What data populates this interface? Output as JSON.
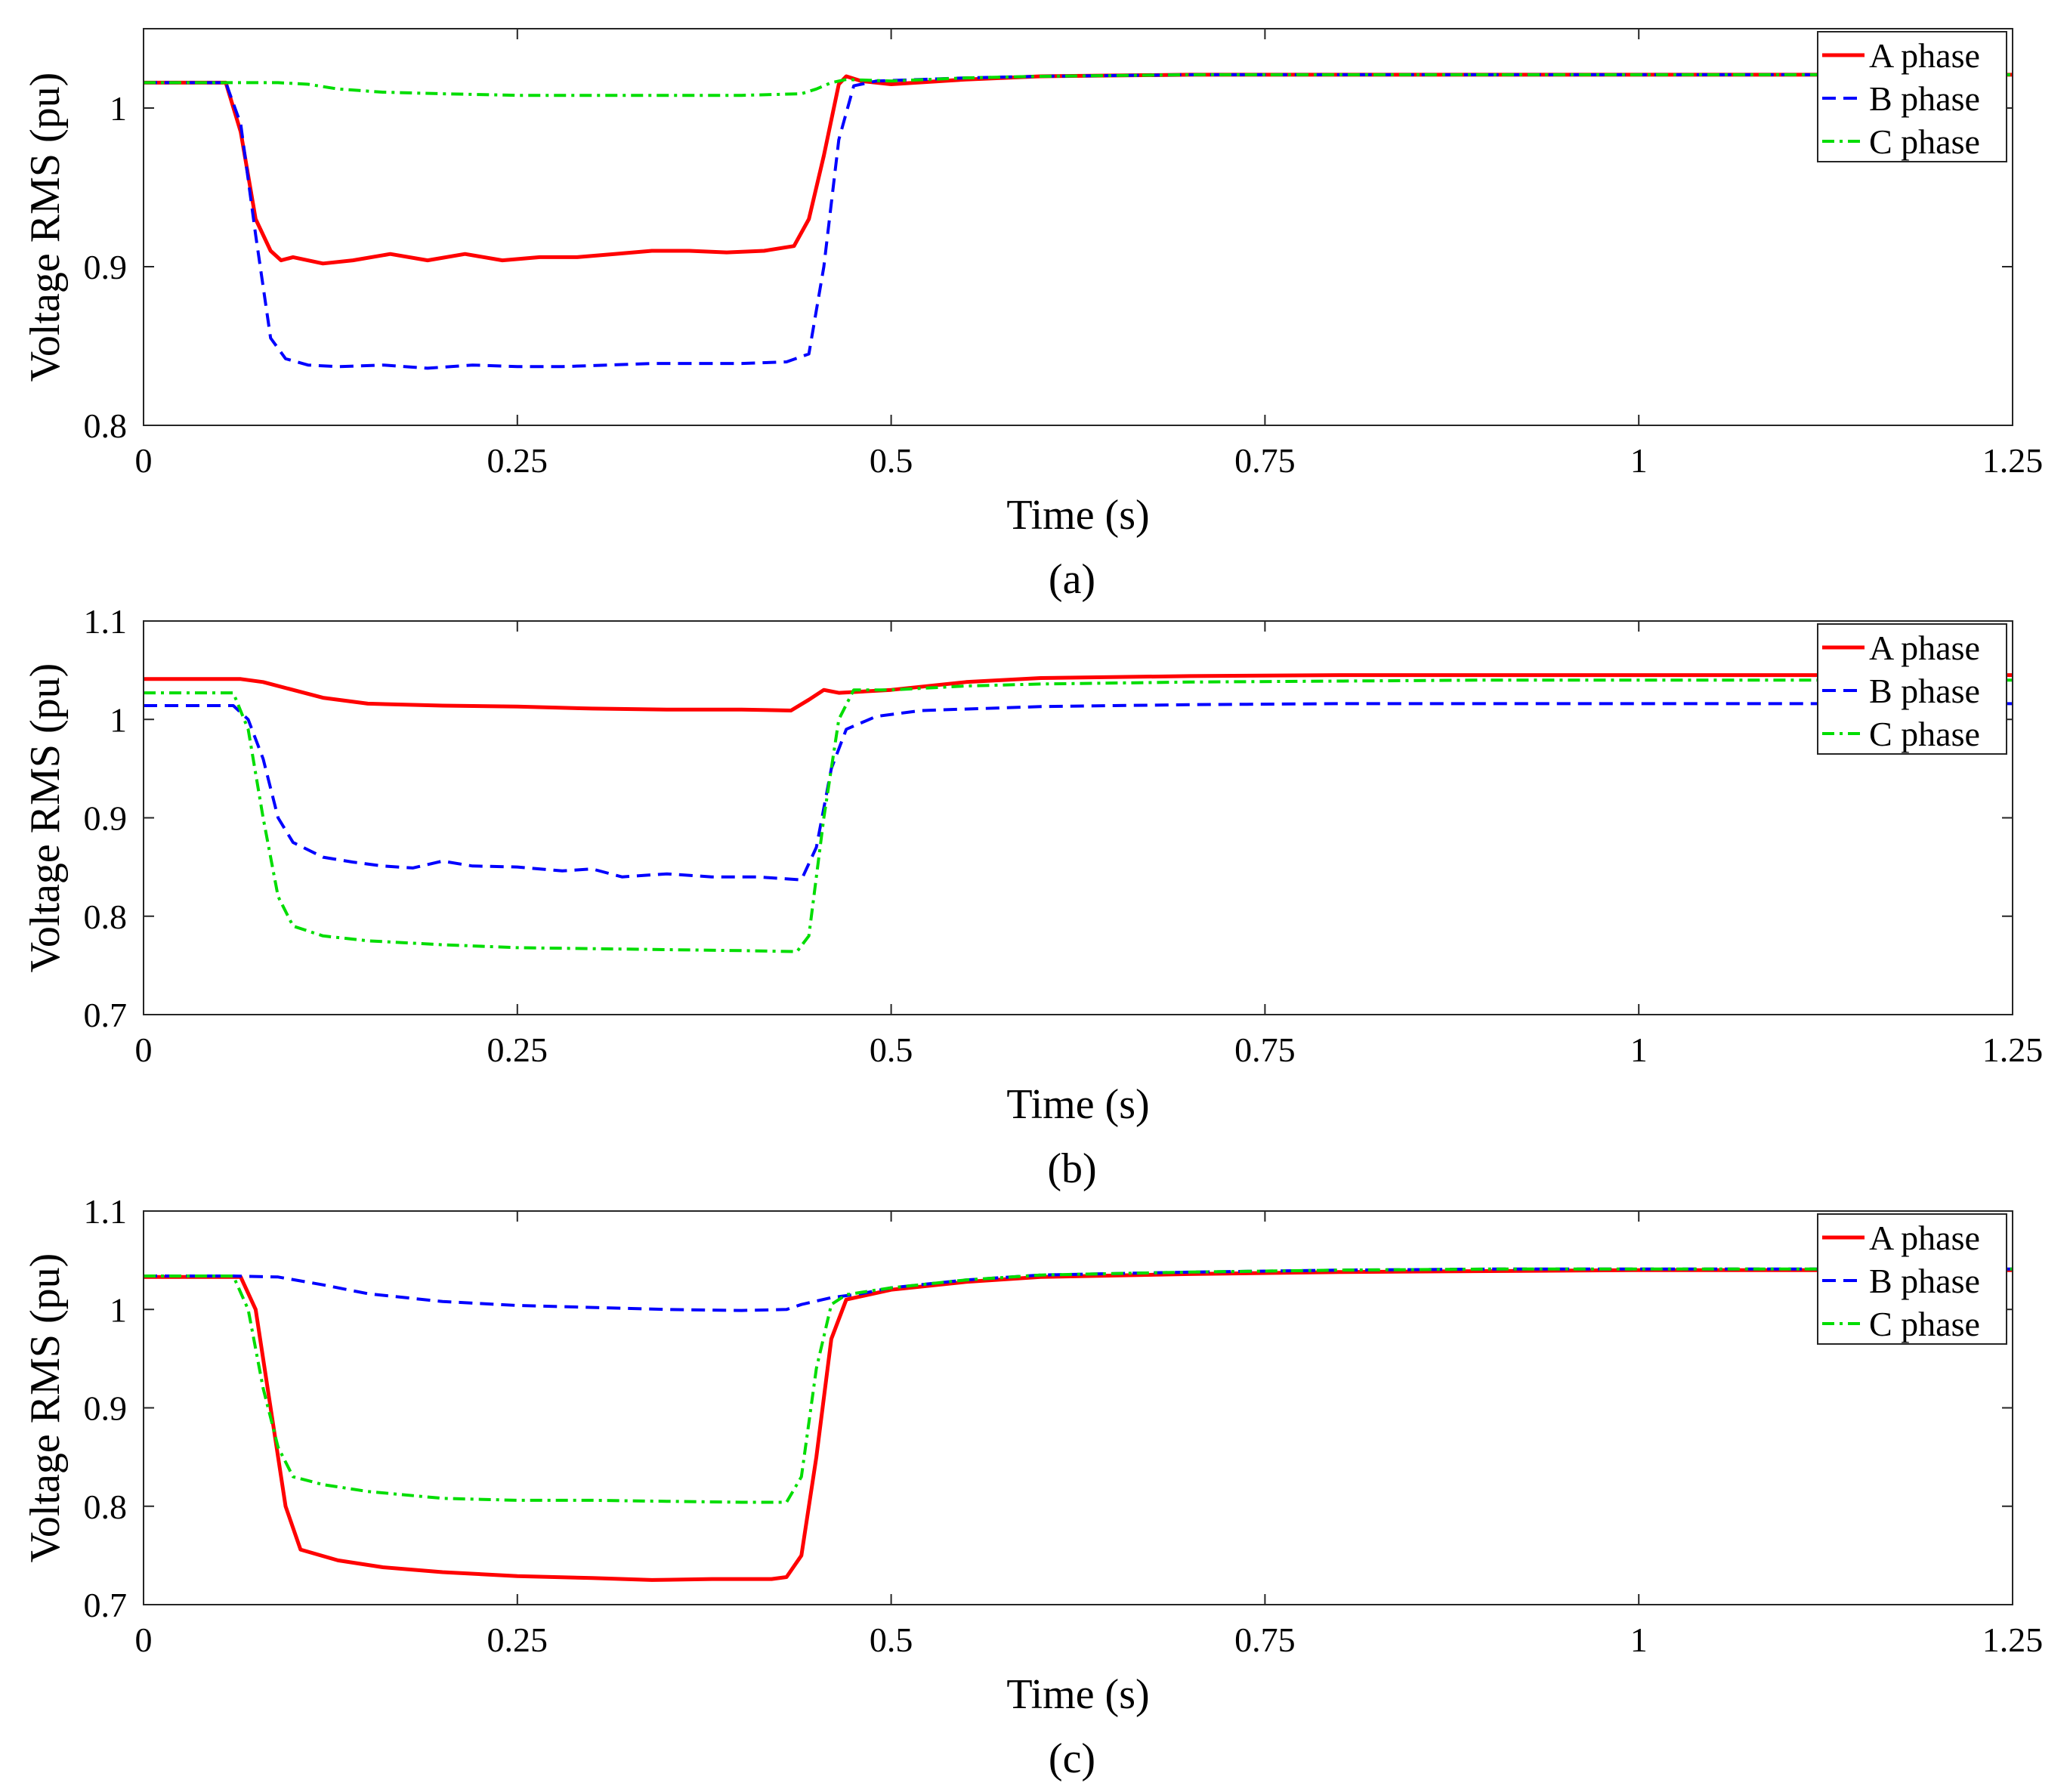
{
  "chart_data": [
    {
      "type": "line",
      "caption": "(a)",
      "xlabel": "Time (s)",
      "ylabel": "Voltage RMS (pu)",
      "xlim": [
        0,
        1.25
      ],
      "ylim": [
        0.8,
        1.05
      ],
      "xticks": [
        0,
        0.25,
        0.5,
        0.75,
        1,
        1.25
      ],
      "xtick_labels": [
        "0",
        "0.25",
        "0.5",
        "0.75",
        "1",
        "1.25"
      ],
      "yticks": [
        0.8,
        0.9,
        1
      ],
      "ytick_labels": [
        "0.8",
        "0.9",
        "1"
      ],
      "grid": false,
      "legend_position": "top-right",
      "series": [
        {
          "name": "A phase",
          "color": "#ff0000",
          "style": "solid",
          "x": [
            0,
            0.055,
            0.065,
            0.075,
            0.085,
            0.092,
            0.1,
            0.12,
            0.14,
            0.165,
            0.19,
            0.215,
            0.24,
            0.265,
            0.29,
            0.315,
            0.34,
            0.365,
            0.39,
            0.415,
            0.435,
            0.445,
            0.455,
            0.465,
            0.47,
            0.48,
            0.5,
            0.55,
            0.6,
            0.7,
            0.8,
            0.9,
            1.0,
            1.1,
            1.25
          ],
          "y": [
            1.016,
            1.016,
            0.985,
            0.93,
            0.91,
            0.904,
            0.906,
            0.902,
            0.904,
            0.908,
            0.904,
            0.908,
            0.904,
            0.906,
            0.906,
            0.908,
            0.91,
            0.91,
            0.909,
            0.91,
            0.913,
            0.93,
            0.97,
            1.015,
            1.02,
            1.017,
            1.015,
            1.018,
            1.02,
            1.021,
            1.021,
            1.021,
            1.021,
            1.021,
            1.021
          ]
        },
        {
          "name": "B phase",
          "color": "#0000ff",
          "style": "dashed",
          "x": [
            0,
            0.055,
            0.065,
            0.075,
            0.085,
            0.095,
            0.11,
            0.13,
            0.16,
            0.19,
            0.22,
            0.25,
            0.28,
            0.31,
            0.34,
            0.37,
            0.4,
            0.43,
            0.445,
            0.455,
            0.465,
            0.475,
            0.49,
            0.55,
            0.6,
            0.7,
            0.8,
            0.9,
            1.0,
            1.1,
            1.25
          ],
          "y": [
            1.016,
            1.016,
            0.99,
            0.92,
            0.855,
            0.842,
            0.838,
            0.837,
            0.838,
            0.836,
            0.838,
            0.837,
            0.837,
            0.838,
            0.839,
            0.839,
            0.839,
            0.84,
            0.845,
            0.9,
            0.98,
            1.014,
            1.017,
            1.019,
            1.02,
            1.021,
            1.021,
            1.021,
            1.021,
            1.021,
            1.021
          ]
        },
        {
          "name": "C phase",
          "color": "#00dd00",
          "style": "dashdot",
          "x": [
            0,
            0.06,
            0.09,
            0.11,
            0.13,
            0.16,
            0.2,
            0.25,
            0.3,
            0.35,
            0.4,
            0.44,
            0.45,
            0.46,
            0.47,
            0.5,
            0.55,
            0.6,
            0.7,
            0.8,
            0.9,
            1.0,
            1.1,
            1.25
          ],
          "y": [
            1.016,
            1.016,
            1.016,
            1.015,
            1.012,
            1.01,
            1.009,
            1.008,
            1.008,
            1.008,
            1.008,
            1.009,
            1.012,
            1.016,
            1.018,
            1.017,
            1.019,
            1.02,
            1.021,
            1.021,
            1.021,
            1.021,
            1.021,
            1.021
          ]
        }
      ]
    },
    {
      "type": "line",
      "caption": "(b)",
      "xlabel": "Time (s)",
      "ylabel": "Voltage RMS (pu)",
      "xlim": [
        0,
        1.25
      ],
      "ylim": [
        0.7,
        1.1
      ],
      "xticks": [
        0,
        0.25,
        0.5,
        0.75,
        1,
        1.25
      ],
      "xtick_labels": [
        "0",
        "0.25",
        "0.5",
        "0.75",
        "1",
        "1.25"
      ],
      "yticks": [
        0.7,
        0.8,
        0.9,
        1,
        1.1
      ],
      "ytick_labels": [
        "0.7",
        "0.8",
        "0.9",
        "1",
        "1.1"
      ],
      "grid": false,
      "legend_position": "top-right",
      "series": [
        {
          "name": "A phase",
          "color": "#ff0000",
          "style": "solid",
          "x": [
            0,
            0.065,
            0.08,
            0.1,
            0.12,
            0.15,
            0.2,
            0.25,
            0.3,
            0.35,
            0.4,
            0.433,
            0.445,
            0.455,
            0.465,
            0.5,
            0.55,
            0.6,
            0.7,
            0.8,
            0.9,
            1.0,
            1.1,
            1.25
          ],
          "y": [
            1.041,
            1.041,
            1.038,
            1.03,
            1.022,
            1.016,
            1.014,
            1.013,
            1.011,
            1.01,
            1.01,
            1.009,
            1.02,
            1.03,
            1.027,
            1.03,
            1.038,
            1.042,
            1.044,
            1.045,
            1.045,
            1.045,
            1.045,
            1.045
          ]
        },
        {
          "name": "B phase",
          "color": "#0000ff",
          "style": "dashed",
          "x": [
            0,
            0.06,
            0.07,
            0.08,
            0.09,
            0.1,
            0.12,
            0.14,
            0.16,
            0.18,
            0.2,
            0.22,
            0.25,
            0.28,
            0.3,
            0.32,
            0.35,
            0.38,
            0.41,
            0.44,
            0.45,
            0.46,
            0.47,
            0.49,
            0.52,
            0.6,
            0.7,
            0.8,
            0.9,
            1.0,
            1.1,
            1.25
          ],
          "y": [
            1.014,
            1.014,
            1.0,
            0.96,
            0.9,
            0.875,
            0.86,
            0.855,
            0.851,
            0.849,
            0.856,
            0.851,
            0.85,
            0.846,
            0.848,
            0.84,
            0.843,
            0.84,
            0.84,
            0.837,
            0.87,
            0.95,
            0.99,
            1.003,
            1.009,
            1.013,
            1.015,
            1.016,
            1.016,
            1.016,
            1.016,
            1.016
          ]
        },
        {
          "name": "C phase",
          "color": "#00dd00",
          "style": "dashdot",
          "x": [
            0,
            0.06,
            0.07,
            0.08,
            0.09,
            0.1,
            0.12,
            0.15,
            0.2,
            0.25,
            0.3,
            0.35,
            0.4,
            0.437,
            0.445,
            0.455,
            0.465,
            0.475,
            0.5,
            0.55,
            0.6,
            0.7,
            0.8,
            0.9,
            1.0,
            1.1,
            1.25
          ],
          "y": [
            1.027,
            1.027,
            0.99,
            0.9,
            0.82,
            0.79,
            0.78,
            0.775,
            0.771,
            0.768,
            0.767,
            0.766,
            0.765,
            0.764,
            0.78,
            0.9,
            1.0,
            1.03,
            1.03,
            1.034,
            1.036,
            1.038,
            1.039,
            1.04,
            1.04,
            1.04,
            1.04
          ]
        }
      ]
    },
    {
      "type": "line",
      "caption": "(c)",
      "xlabel": "Time (s)",
      "ylabel": "Voltage RMS (pu)",
      "xlim": [
        0,
        1.25
      ],
      "ylim": [
        0.7,
        1.1
      ],
      "xticks": [
        0,
        0.25,
        0.5,
        0.75,
        1,
        1.25
      ],
      "xtick_labels": [
        "0",
        "0.25",
        "0.5",
        "0.75",
        "1",
        "1.25"
      ],
      "yticks": [
        0.7,
        0.8,
        0.9,
        1,
        1.1
      ],
      "ytick_labels": [
        "0.7",
        "0.8",
        "0.9",
        "1",
        "1.1"
      ],
      "grid": false,
      "legend_position": "top-right",
      "series": [
        {
          "name": "A phase",
          "color": "#ff0000",
          "style": "solid",
          "x": [
            0,
            0.065,
            0.075,
            0.085,
            0.095,
            0.105,
            0.13,
            0.16,
            0.2,
            0.25,
            0.3,
            0.34,
            0.38,
            0.42,
            0.43,
            0.44,
            0.45,
            0.46,
            0.47,
            0.5,
            0.55,
            0.6,
            0.7,
            0.8,
            0.9,
            1.0,
            1.1,
            1.25
          ],
          "y": [
            1.033,
            1.033,
            1.0,
            0.9,
            0.8,
            0.756,
            0.745,
            0.738,
            0.733,
            0.729,
            0.727,
            0.725,
            0.726,
            0.726,
            0.728,
            0.75,
            0.85,
            0.97,
            1.01,
            1.02,
            1.028,
            1.033,
            1.036,
            1.038,
            1.039,
            1.04,
            1.04,
            1.04
          ]
        },
        {
          "name": "B phase",
          "color": "#0000ff",
          "style": "dashed",
          "x": [
            0,
            0.06,
            0.09,
            0.12,
            0.15,
            0.2,
            0.25,
            0.3,
            0.35,
            0.4,
            0.43,
            0.44,
            0.46,
            0.48,
            0.5,
            0.55,
            0.6,
            0.7,
            0.8,
            0.9,
            1.0,
            1.1,
            1.25
          ],
          "y": [
            1.034,
            1.034,
            1.033,
            1.025,
            1.016,
            1.008,
            1.004,
            1.002,
            1.0,
            0.999,
            1.0,
            1.005,
            1.012,
            1.016,
            1.022,
            1.03,
            1.035,
            1.038,
            1.04,
            1.041,
            1.041,
            1.041,
            1.041
          ]
        },
        {
          "name": "C phase",
          "color": "#00dd00",
          "style": "dashdot",
          "x": [
            0,
            0.06,
            0.07,
            0.08,
            0.09,
            0.1,
            0.12,
            0.15,
            0.2,
            0.25,
            0.3,
            0.35,
            0.4,
            0.43,
            0.44,
            0.45,
            0.46,
            0.47,
            0.5,
            0.55,
            0.6,
            0.7,
            0.8,
            0.9,
            1.0,
            1.1,
            1.25
          ],
          "y": [
            1.034,
            1.034,
            1.0,
            0.92,
            0.86,
            0.83,
            0.822,
            0.815,
            0.808,
            0.806,
            0.806,
            0.805,
            0.804,
            0.804,
            0.83,
            0.94,
            1.005,
            1.015,
            1.022,
            1.03,
            1.035,
            1.038,
            1.04,
            1.041,
            1.041,
            1.041,
            1.041
          ]
        }
      ]
    }
  ]
}
